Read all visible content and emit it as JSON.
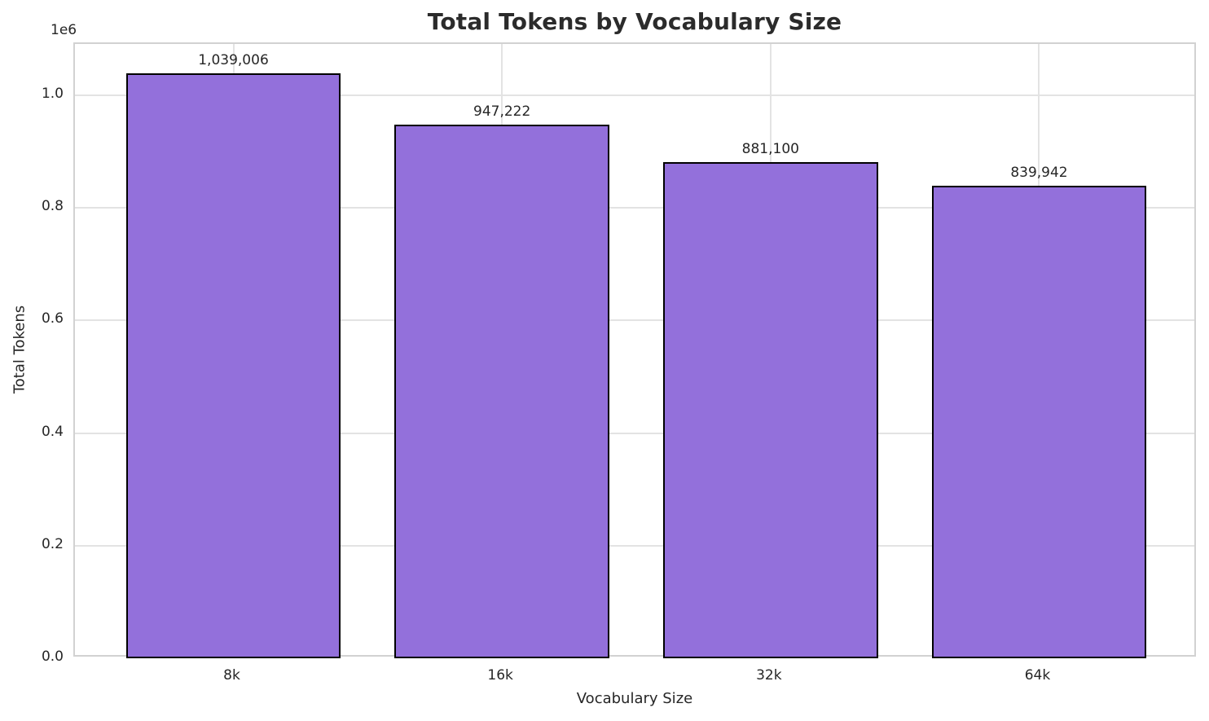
{
  "chart_data": {
    "type": "bar",
    "title": "Total Tokens by Vocabulary Size",
    "xlabel": "Vocabulary Size",
    "ylabel": "Total Tokens",
    "y_axis_multiplier_label": "1e6",
    "categories": [
      "8k",
      "16k",
      "32k",
      "64k"
    ],
    "values": [
      1039006,
      947222,
      881100,
      839942
    ],
    "value_labels": [
      "1,039,006",
      "947,222",
      "881,100",
      "839,942"
    ],
    "ylim": [
      0,
      1091000
    ],
    "y_ticks": [
      {
        "value": 0,
        "label": "0.0"
      },
      {
        "value": 200000,
        "label": "0.2"
      },
      {
        "value": 400000,
        "label": "0.4"
      },
      {
        "value": 600000,
        "label": "0.6"
      },
      {
        "value": 800000,
        "label": "0.8"
      },
      {
        "value": 1000000,
        "label": "1.0"
      }
    ],
    "grid": true,
    "legend_position": "none",
    "colors": {
      "bar_fill": "#9370DB",
      "bar_edge": "#000000",
      "grid": "#e3e3e3",
      "spine": "#d2d2d2",
      "text": "#262626",
      "title": "#2b2b2b"
    }
  }
}
